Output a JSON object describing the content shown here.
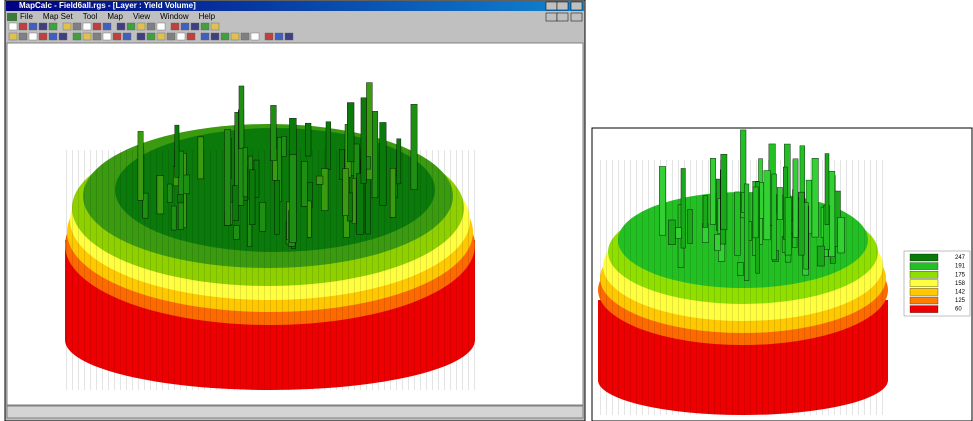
{
  "window": {
    "title": "MapCalc - Field6all.rgs - [Layer : Yield Volume]",
    "menu": [
      "File",
      "Map Set",
      "Tool",
      "Map",
      "View",
      "Window",
      "Help"
    ]
  },
  "legend": {
    "items": [
      {
        "label": "247",
        "color": "#0a7a0a"
      },
      {
        "label": "191",
        "color": "#22c022"
      },
      {
        "label": "175",
        "color": "#8fe000"
      },
      {
        "label": "158",
        "color": "#ffff40"
      },
      {
        "label": "142",
        "color": "#ffc800"
      },
      {
        "label": "125",
        "color": "#ff8000"
      },
      {
        "label": "60",
        "color": "#ee0000"
      }
    ]
  }
}
